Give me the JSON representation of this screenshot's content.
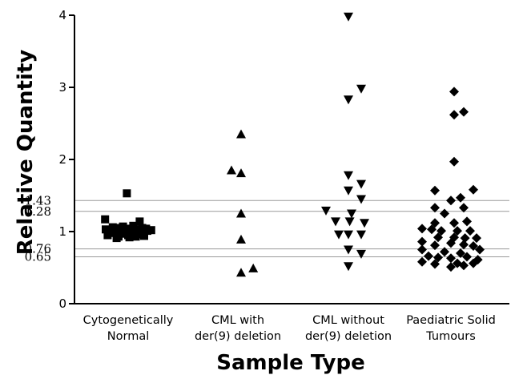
{
  "chart_data": {
    "type": "scatter",
    "xlabel": "Sample Type",
    "ylabel": "Relative Quantity",
    "ylim": [
      0,
      4
    ],
    "y_ticks": [
      "0",
      "1",
      "2",
      "3",
      "4"
    ],
    "reference_lines": [
      {
        "value": 1.43,
        "label": "1.43"
      },
      {
        "value": 1.28,
        "label": "1.28"
      },
      {
        "value": 0.76,
        "label": "0.76"
      },
      {
        "value": 0.65,
        "label": "0.65"
      }
    ],
    "grid": false,
    "categories": [
      {
        "lines": [
          "Cytogenetically",
          "Normal"
        ]
      },
      {
        "lines": [
          "CML with",
          "der(9) deletion"
        ]
      },
      {
        "lines": [
          "CML without",
          "der(9) deletion"
        ]
      },
      {
        "lines": [
          "Paediatric Solid",
          "Tumours"
        ]
      }
    ],
    "series": [
      {
        "category_index": 0,
        "marker": "square",
        "points": [
          {
            "x": -0.35,
            "y": 1.03
          },
          {
            "x": -0.32,
            "y": 0.95
          },
          {
            "x": -0.26,
            "y": 0.98
          },
          {
            "x": -0.2,
            "y": 1.02
          },
          {
            "x": -0.15,
            "y": 0.93
          },
          {
            "x": -0.1,
            "y": 0.97
          },
          {
            "x": -0.05,
            "y": 1.01
          },
          {
            "x": 0.0,
            "y": 0.95
          },
          {
            "x": 0.05,
            "y": 0.99
          },
          {
            "x": 0.1,
            "y": 1.03
          },
          {
            "x": 0.15,
            "y": 0.96
          },
          {
            "x": 0.2,
            "y": 0.98
          },
          {
            "x": 0.25,
            "y": 0.94
          },
          {
            "x": 0.3,
            "y": 1.01
          },
          {
            "x": 0.36,
            "y": 1.02
          },
          {
            "x": -0.24,
            "y": 1.06
          },
          {
            "x": -0.08,
            "y": 1.07
          },
          {
            "x": 0.08,
            "y": 1.08
          },
          {
            "x": 0.22,
            "y": 1.05
          },
          {
            "x": -0.18,
            "y": 0.91
          },
          {
            "x": 0.02,
            "y": 0.92
          },
          {
            "x": 0.12,
            "y": 0.93
          },
          {
            "x": -0.12,
            "y": 1.05
          },
          {
            "x": -0.02,
            "y": 1.04
          },
          {
            "x": 0.28,
            "y": 1.04
          },
          {
            "x": -0.36,
            "y": 1.17
          },
          {
            "x": 0.18,
            "y": 1.14
          },
          {
            "x": -0.02,
            "y": 1.53
          }
        ]
      },
      {
        "category_index": 1,
        "marker": "triangle-up",
        "points": [
          {
            "x": 0.05,
            "y": 2.35
          },
          {
            "x": -0.1,
            "y": 1.85
          },
          {
            "x": 0.05,
            "y": 1.81
          },
          {
            "x": 0.05,
            "y": 1.25
          },
          {
            "x": 0.05,
            "y": 0.89
          },
          {
            "x": 0.05,
            "y": 0.43
          },
          {
            "x": 0.24,
            "y": 0.49
          }
        ]
      },
      {
        "category_index": 2,
        "marker": "triangle-down",
        "points": [
          {
            "x": 0.0,
            "y": 3.98
          },
          {
            "x": 0.0,
            "y": 2.83
          },
          {
            "x": 0.2,
            "y": 2.98
          },
          {
            "x": 0.0,
            "y": 1.78
          },
          {
            "x": 0.2,
            "y": 1.66
          },
          {
            "x": 0.0,
            "y": 1.57
          },
          {
            "x": 0.2,
            "y": 1.45
          },
          {
            "x": -0.35,
            "y": 1.29
          },
          {
            "x": 0.05,
            "y": 1.25
          },
          {
            "x": -0.2,
            "y": 1.14
          },
          {
            "x": 0.02,
            "y": 1.14
          },
          {
            "x": 0.25,
            "y": 1.12
          },
          {
            "x": -0.15,
            "y": 0.96
          },
          {
            "x": 0.0,
            "y": 0.96
          },
          {
            "x": 0.2,
            "y": 0.96
          },
          {
            "x": 0.0,
            "y": 0.75
          },
          {
            "x": 0.2,
            "y": 0.69
          },
          {
            "x": 0.0,
            "y": 0.52
          }
        ]
      },
      {
        "category_index": 3,
        "marker": "diamond",
        "points": [
          {
            "x": 0.05,
            "y": 2.94
          },
          {
            "x": 0.05,
            "y": 2.62
          },
          {
            "x": 0.2,
            "y": 2.66
          },
          {
            "x": 0.05,
            "y": 1.97
          },
          {
            "x": -0.25,
            "y": 1.57
          },
          {
            "x": 0.35,
            "y": 1.58
          },
          {
            "x": 0.15,
            "y": 1.47
          },
          {
            "x": 0.0,
            "y": 1.43
          },
          {
            "x": -0.25,
            "y": 1.33
          },
          {
            "x": 0.2,
            "y": 1.33
          },
          {
            "x": -0.1,
            "y": 1.25
          },
          {
            "x": -0.25,
            "y": 1.12
          },
          {
            "x": 0.05,
            "y": 1.12
          },
          {
            "x": 0.25,
            "y": 1.14
          },
          {
            "x": -0.45,
            "y": 1.04
          },
          {
            "x": -0.3,
            "y": 1.03
          },
          {
            "x": -0.15,
            "y": 1.01
          },
          {
            "x": 0.1,
            "y": 1.01
          },
          {
            "x": 0.3,
            "y": 1.01
          },
          {
            "x": 0.05,
            "y": 0.92
          },
          {
            "x": -0.2,
            "y": 0.92
          },
          {
            "x": 0.22,
            "y": 0.91
          },
          {
            "x": 0.4,
            "y": 0.91
          },
          {
            "x": -0.45,
            "y": 0.86
          },
          {
            "x": -0.25,
            "y": 0.81
          },
          {
            "x": 0.0,
            "y": 0.84
          },
          {
            "x": 0.2,
            "y": 0.82
          },
          {
            "x": 0.35,
            "y": 0.8
          },
          {
            "x": -0.45,
            "y": 0.75
          },
          {
            "x": -0.1,
            "y": 0.72
          },
          {
            "x": 0.15,
            "y": 0.7
          },
          {
            "x": 0.45,
            "y": 0.75
          },
          {
            "x": -0.35,
            "y": 0.66
          },
          {
            "x": -0.2,
            "y": 0.64
          },
          {
            "x": 0.0,
            "y": 0.63
          },
          {
            "x": 0.25,
            "y": 0.65
          },
          {
            "x": -0.45,
            "y": 0.58
          },
          {
            "x": -0.25,
            "y": 0.55
          },
          {
            "x": 0.1,
            "y": 0.56
          },
          {
            "x": 0.35,
            "y": 0.56
          },
          {
            "x": 0.0,
            "y": 0.51
          },
          {
            "x": 0.2,
            "y": 0.53
          },
          {
            "x": 0.42,
            "y": 0.61
          }
        ]
      }
    ]
  }
}
